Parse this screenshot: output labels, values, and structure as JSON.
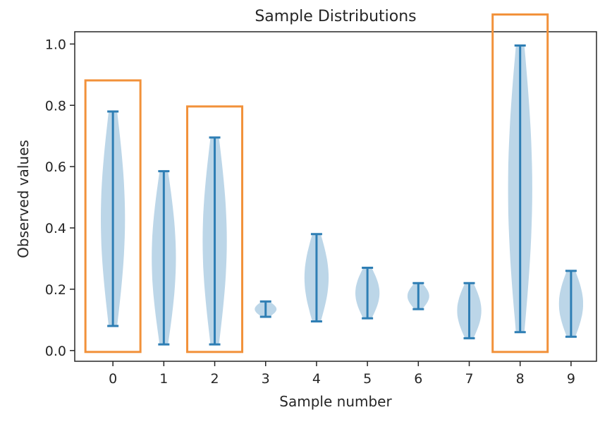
{
  "chart_data": {
    "type": "violin",
    "title": "Sample Distributions",
    "xlabel": "Sample number",
    "ylabel": "Observed values",
    "xlim": [
      -0.75,
      9.5
    ],
    "ylim": [
      -0.035,
      1.04
    ],
    "categories": [
      "0",
      "1",
      "2",
      "3",
      "4",
      "5",
      "6",
      "7",
      "8",
      "9"
    ],
    "yticks": [
      0.0,
      0.2,
      0.4,
      0.6,
      0.8,
      1.0
    ],
    "ytick_labels": [
      "0.0",
      "0.2",
      "0.4",
      "0.6",
      "0.8",
      "1.0"
    ],
    "violins": [
      {
        "x": 0,
        "min": 0.08,
        "max": 0.78
      },
      {
        "x": 1,
        "min": 0.02,
        "max": 0.585
      },
      {
        "x": 2,
        "min": 0.02,
        "max": 0.695
      },
      {
        "x": 3,
        "min": 0.11,
        "max": 0.16
      },
      {
        "x": 4,
        "min": 0.095,
        "max": 0.38
      },
      {
        "x": 5,
        "min": 0.105,
        "max": 0.27
      },
      {
        "x": 6,
        "min": 0.135,
        "max": 0.22
      },
      {
        "x": 7,
        "min": 0.04,
        "max": 0.22
      },
      {
        "x": 8,
        "min": 0.06,
        "max": 0.995
      },
      {
        "x": 9,
        "min": 0.045,
        "max": 0.26
      }
    ],
    "highlighted": [
      0,
      2,
      8
    ],
    "colors": {
      "body": "#a6c8e0",
      "line": "#2e7eb4",
      "highlight": "#f2913a",
      "axis": "#262626"
    }
  }
}
